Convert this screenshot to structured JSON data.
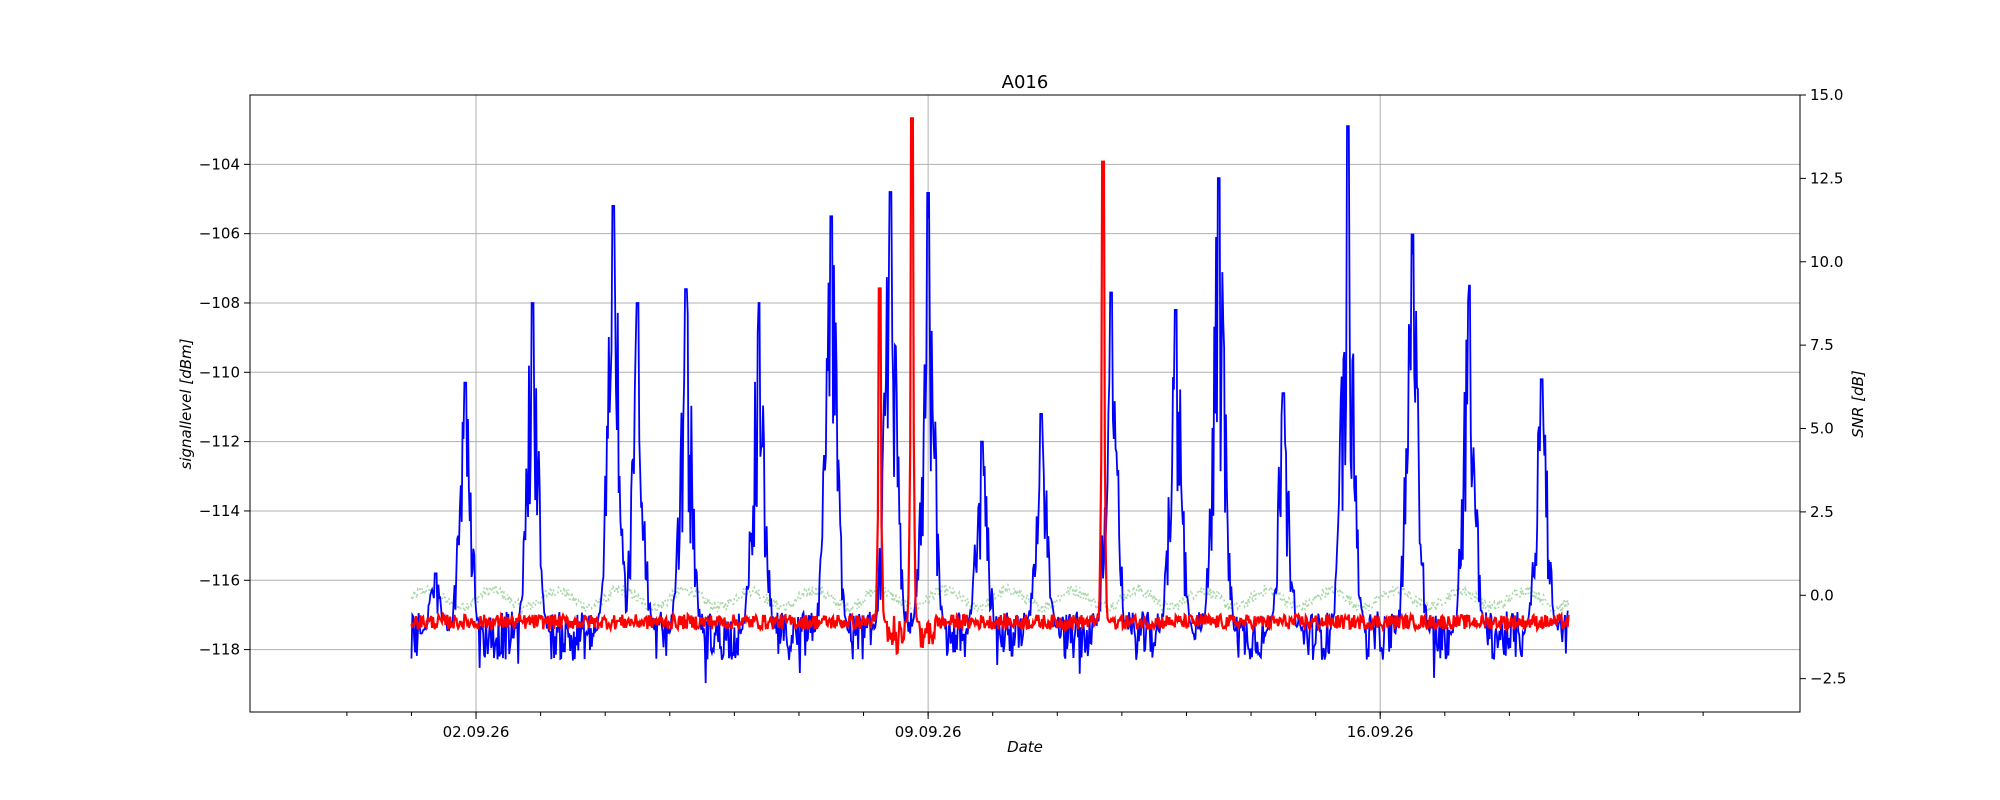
{
  "chart_data": {
    "type": "line",
    "title": "A016",
    "xlabel": "Date",
    "ylabel": "signallevel [dBm]",
    "y2label": "SNR [dB]",
    "grid": true,
    "x_range": [
      "2026-08-29T12:00",
      "2026-09-22T12:00"
    ],
    "x_ticks": [
      {
        "date": "2026-09-02",
        "label": "02.09.26"
      },
      {
        "date": "2026-09-09",
        "label": "09.09.26"
      },
      {
        "date": "2026-09-16",
        "label": "16.09.26"
      }
    ],
    "ylim": [
      -119.8,
      -102.0
    ],
    "y_ticks": [
      -104,
      -106,
      -108,
      -110,
      -112,
      -114,
      -116,
      -118
    ],
    "y2lim": [
      -3.5,
      15.0
    ],
    "y2_ticks": [
      15.0,
      12.5,
      10.0,
      7.5,
      5.0,
      2.5,
      0.0,
      -2.5
    ],
    "series": [
      {
        "axis": "left",
        "color": "#0000ff",
        "style": "solid",
        "baseline": -117.6,
        "peaks": [
          {
            "date": "2026-09-01T09:00",
            "value": -115.8
          },
          {
            "date": "2026-09-01T20:00",
            "value": -110.3
          },
          {
            "date": "2026-09-02T21:00",
            "value": -108.0
          },
          {
            "date": "2026-09-04T03:00",
            "value": -105.2
          },
          {
            "date": "2026-09-04T12:00",
            "value": -108.0
          },
          {
            "date": "2026-09-05T06:00",
            "value": -107.6
          },
          {
            "date": "2026-09-06T09:00",
            "value": -108.0
          },
          {
            "date": "2026-09-07T12:00",
            "value": -105.5
          },
          {
            "date": "2026-09-08T10:00",
            "value": -104.8
          },
          {
            "date": "2026-09-09T00:00",
            "value": -104.8
          },
          {
            "date": "2026-09-09T20:00",
            "value": -112.0
          },
          {
            "date": "2026-09-10T18:00",
            "value": -111.2
          },
          {
            "date": "2026-09-11T20:00",
            "value": -107.7
          },
          {
            "date": "2026-09-12T20:00",
            "value": -108.2
          },
          {
            "date": "2026-09-13T12:00",
            "value": -104.4
          },
          {
            "date": "2026-09-14T12:00",
            "value": -110.6
          },
          {
            "date": "2026-09-15T12:00",
            "value": -102.9
          },
          {
            "date": "2026-09-16T12:00",
            "value": -106.0
          },
          {
            "date": "2026-09-17T09:00",
            "value": -107.5
          },
          {
            "date": "2026-09-18T12:00",
            "value": -110.2
          }
        ]
      },
      {
        "axis": "right",
        "color": "#ff0000",
        "style": "solid",
        "baseline": -0.8,
        "spikes": [
          {
            "date": "2026-09-08T06:00",
            "value": 9.2
          },
          {
            "date": "2026-09-08T18:00",
            "value": 14.3
          },
          {
            "date": "2026-09-11T17:00",
            "value": 13.0
          }
        ]
      },
      {
        "axis": "right",
        "color": "#a8d8a8",
        "style": "dotted",
        "baseline": -0.1
      }
    ]
  }
}
